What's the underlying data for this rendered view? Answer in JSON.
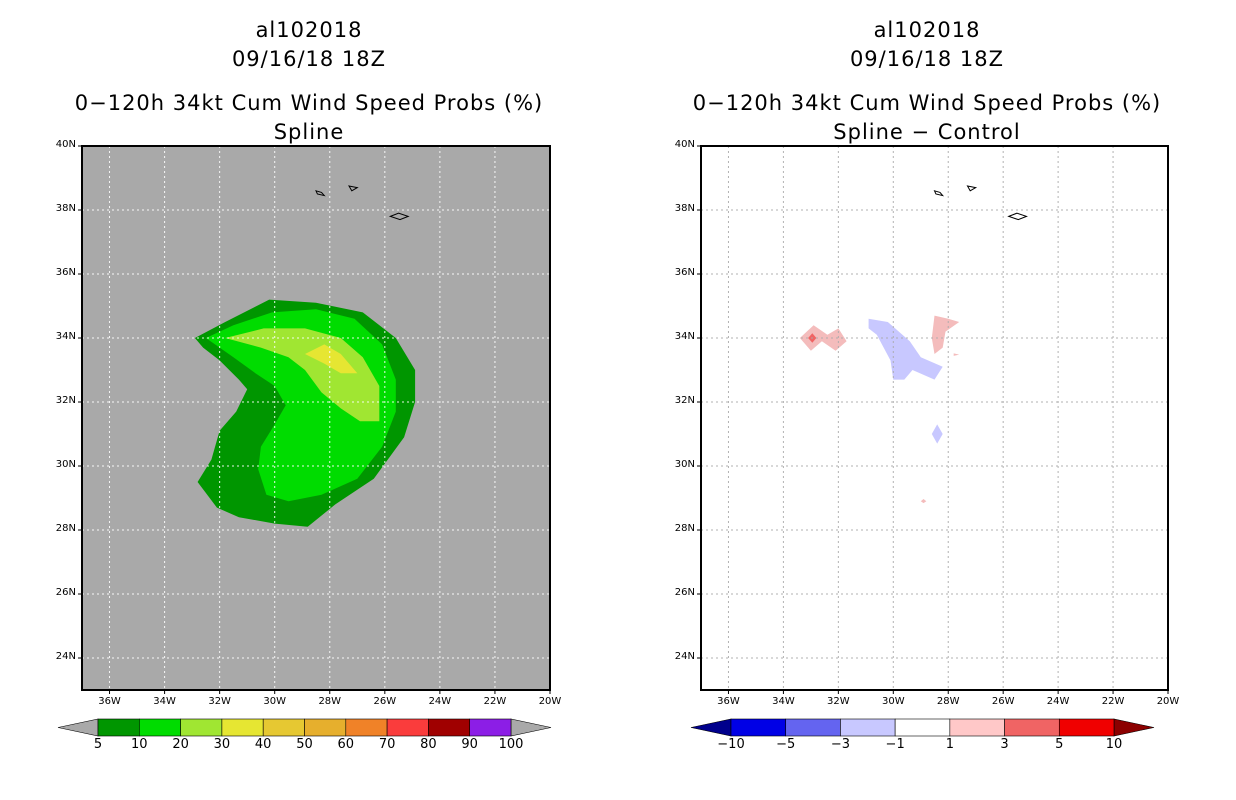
{
  "chart_data": [
    {
      "type": "filled-contour-map",
      "storm_id": "al102018",
      "datetime": "09/16/18 18Z",
      "title": "0−120h 34kt Cum Wind Speed Probs (%)",
      "subtitle": "Spline",
      "xlabel": "",
      "ylabel": "",
      "xlim": [
        -37,
        -20
      ],
      "ylim": [
        23,
        40
      ],
      "x_ticks": [
        "36W",
        "34W",
        "32W",
        "30W",
        "28W",
        "26W",
        "24W",
        "22W",
        "20W"
      ],
      "y_ticks": [
        "40N",
        "38N",
        "36N",
        "34N",
        "32N",
        "30N",
        "28N",
        "26N",
        "24N"
      ],
      "grid": true,
      "background": "#a9a9a9",
      "colorbar": {
        "levels": [
          "5",
          "10",
          "20",
          "30",
          "40",
          "50",
          "60",
          "70",
          "80",
          "90",
          "100"
        ],
        "colors": [
          "#009600",
          "#00dc00",
          "#a0e632",
          "#e6e632",
          "#e6c832",
          "#e6af2d",
          "#f08228",
          "#fa3c3c",
          "#a00000",
          "#8c1ee6"
        ],
        "extend_colors": [
          "#a9a9a9",
          "#a9a9a9"
        ]
      },
      "contours": [
        {
          "level": 5,
          "color": "#009600",
          "points": [
            [
              -32.9,
              34.0
            ],
            [
              -31.8,
              34.5
            ],
            [
              -30.2,
              35.2
            ],
            [
              -28.5,
              35.1
            ],
            [
              -26.8,
              34.8
            ],
            [
              -25.6,
              34.0
            ],
            [
              -24.9,
              33.0
            ],
            [
              -24.9,
              32.0
            ],
            [
              -25.3,
              30.9
            ],
            [
              -26.4,
              29.6
            ],
            [
              -27.8,
              28.8
            ],
            [
              -28.8,
              28.1
            ],
            [
              -30.0,
              28.2
            ],
            [
              -31.3,
              28.4
            ],
            [
              -32.1,
              28.7
            ],
            [
              -32.8,
              29.5
            ],
            [
              -32.3,
              30.2
            ],
            [
              -32.0,
              31.1
            ],
            [
              -31.4,
              31.7
            ],
            [
              -31.0,
              32.4
            ],
            [
              -31.3,
              32.7
            ],
            [
              -32.0,
              33.3
            ],
            [
              -32.6,
              33.7
            ]
          ]
        },
        {
          "level": 10,
          "color": "#00dc00",
          "points": [
            [
              -32.5,
              34.0
            ],
            [
              -31.5,
              34.4
            ],
            [
              -30.1,
              34.8
            ],
            [
              -28.5,
              34.9
            ],
            [
              -27.1,
              34.6
            ],
            [
              -26.1,
              33.8
            ],
            [
              -25.6,
              32.7
            ],
            [
              -25.6,
              31.7
            ],
            [
              -26.1,
              30.6
            ],
            [
              -27.0,
              29.6
            ],
            [
              -28.3,
              29.1
            ],
            [
              -29.5,
              28.9
            ],
            [
              -30.3,
              29.1
            ],
            [
              -30.6,
              29.9
            ],
            [
              -30.5,
              30.6
            ],
            [
              -30.0,
              31.3
            ],
            [
              -29.6,
              31.9
            ],
            [
              -30.0,
              32.5
            ],
            [
              -30.7,
              32.9
            ],
            [
              -31.5,
              33.4
            ]
          ]
        },
        {
          "level": 20,
          "color": "#a0e632",
          "points": [
            [
              -31.8,
              34.0
            ],
            [
              -30.4,
              34.3
            ],
            [
              -28.9,
              34.3
            ],
            [
              -27.6,
              34.0
            ],
            [
              -26.8,
              33.4
            ],
            [
              -26.2,
              32.5
            ],
            [
              -26.2,
              31.4
            ],
            [
              -26.9,
              31.4
            ],
            [
              -27.6,
              31.8
            ],
            [
              -28.3,
              32.3
            ],
            [
              -28.9,
              33.0
            ],
            [
              -29.5,
              33.4
            ],
            [
              -30.5,
              33.7
            ]
          ]
        },
        {
          "level": 30,
          "color": "#e6e632",
          "points": [
            [
              -28.9,
              33.5
            ],
            [
              -28.2,
              33.8
            ],
            [
              -27.6,
              33.5
            ],
            [
              -27.0,
              32.9
            ],
            [
              -27.6,
              32.9
            ],
            [
              -28.2,
              33.2
            ]
          ]
        }
      ],
      "islands": [
        {
          "name": "azores-west",
          "points": [
            [
              -28.5,
              38.6
            ],
            [
              -28.3,
              38.55
            ],
            [
              -28.2,
              38.45
            ],
            [
              -28.45,
              38.5
            ]
          ]
        },
        {
          "name": "azores-central",
          "points": [
            [
              -27.3,
              38.75
            ],
            [
              -27.0,
              38.7
            ],
            [
              -27.2,
              38.6
            ]
          ]
        },
        {
          "name": "azores-east",
          "points": [
            [
              -25.8,
              37.8
            ],
            [
              -25.5,
              37.9
            ],
            [
              -25.15,
              37.8
            ],
            [
              -25.45,
              37.7
            ]
          ]
        }
      ]
    },
    {
      "type": "filled-contour-map",
      "storm_id": "al102018",
      "datetime": "09/16/18 18Z",
      "title": "0−120h 34kt Cum Wind Speed Probs (%)",
      "subtitle": "Spline − Control",
      "xlabel": "",
      "ylabel": "",
      "xlim": [
        -37,
        -20
      ],
      "ylim": [
        23,
        40
      ],
      "x_ticks": [
        "36W",
        "34W",
        "32W",
        "30W",
        "28W",
        "26W",
        "24W",
        "22W",
        "20W"
      ],
      "y_ticks": [
        "40N",
        "38N",
        "36N",
        "34N",
        "32N",
        "30N",
        "28N",
        "26N",
        "24N"
      ],
      "grid": true,
      "background": "#ffffff",
      "colorbar": {
        "levels": [
          "−10",
          "−5",
          "−3",
          "−1",
          "1",
          "3",
          "5",
          "10"
        ],
        "colors": [
          "#0000e6",
          "#6464f0",
          "#c8c8ff",
          "#ffffff",
          "#ffc8c8",
          "#f06464",
          "#f00000"
        ],
        "extend_colors": [
          "#00008c",
          "#8c0000"
        ]
      },
      "contours": [
        {
          "level": 1,
          "color": "#f4bcbc",
          "points": [
            [
              -33.4,
              34.0
            ],
            [
              -32.9,
              34.4
            ],
            [
              -32.4,
              34.1
            ],
            [
              -32.0,
              34.3
            ],
            [
              -31.7,
              33.9
            ],
            [
              -32.1,
              33.6
            ],
            [
              -32.6,
              33.9
            ],
            [
              -33.0,
              33.6
            ]
          ]
        },
        {
          "level": 3,
          "color": "#f06464",
          "points": [
            [
              -33.1,
              34.0
            ],
            [
              -32.95,
              34.15
            ],
            [
              -32.8,
              34.0
            ],
            [
              -32.95,
              33.85
            ]
          ]
        },
        {
          "level": 1,
          "color": "#f4bcbc",
          "points": [
            [
              -28.5,
              34.7
            ],
            [
              -28.0,
              34.6
            ],
            [
              -27.6,
              34.5
            ],
            [
              -28.1,
              34.2
            ],
            [
              -28.2,
              33.7
            ],
            [
              -28.5,
              33.5
            ],
            [
              -28.6,
              34.0
            ]
          ]
        },
        {
          "level": -1,
          "color": "#c8c8ff",
          "points": [
            [
              -30.9,
              34.6
            ],
            [
              -30.2,
              34.5
            ],
            [
              -29.4,
              33.9
            ],
            [
              -29.0,
              33.4
            ],
            [
              -28.2,
              33.1
            ],
            [
              -28.5,
              32.7
            ],
            [
              -29.3,
              33.0
            ],
            [
              -29.6,
              32.7
            ],
            [
              -30.0,
              32.7
            ],
            [
              -30.1,
              33.3
            ],
            [
              -30.6,
              34.1
            ],
            [
              -30.9,
              34.3
            ]
          ]
        },
        {
          "level": -1,
          "color": "#c8c8ff",
          "points": [
            [
              -28.4,
              31.3
            ],
            [
              -28.2,
              31.0
            ],
            [
              -28.4,
              30.7
            ],
            [
              -28.6,
              31.0
            ]
          ]
        },
        {
          "level": 1,
          "color": "#f4bcbc",
          "points": [
            [
              -28.9,
              28.97
            ],
            [
              -28.8,
              28.9
            ],
            [
              -28.9,
              28.84
            ],
            [
              -29.0,
              28.9
            ]
          ]
        },
        {
          "level": 1,
          "color": "#f4bcbc",
          "points": [
            [
              -27.8,
              33.52
            ],
            [
              -27.6,
              33.48
            ],
            [
              -27.8,
              33.44
            ]
          ]
        }
      ],
      "islands": [
        {
          "name": "azores-west",
          "points": [
            [
              -28.5,
              38.6
            ],
            [
              -28.3,
              38.55
            ],
            [
              -28.2,
              38.45
            ],
            [
              -28.45,
              38.5
            ]
          ]
        },
        {
          "name": "azores-central",
          "points": [
            [
              -27.3,
              38.75
            ],
            [
              -27.0,
              38.7
            ],
            [
              -27.2,
              38.6
            ]
          ]
        },
        {
          "name": "azores-east",
          "points": [
            [
              -25.8,
              37.8
            ],
            [
              -25.5,
              37.9
            ],
            [
              -25.15,
              37.8
            ],
            [
              -25.45,
              37.7
            ]
          ]
        }
      ]
    }
  ]
}
